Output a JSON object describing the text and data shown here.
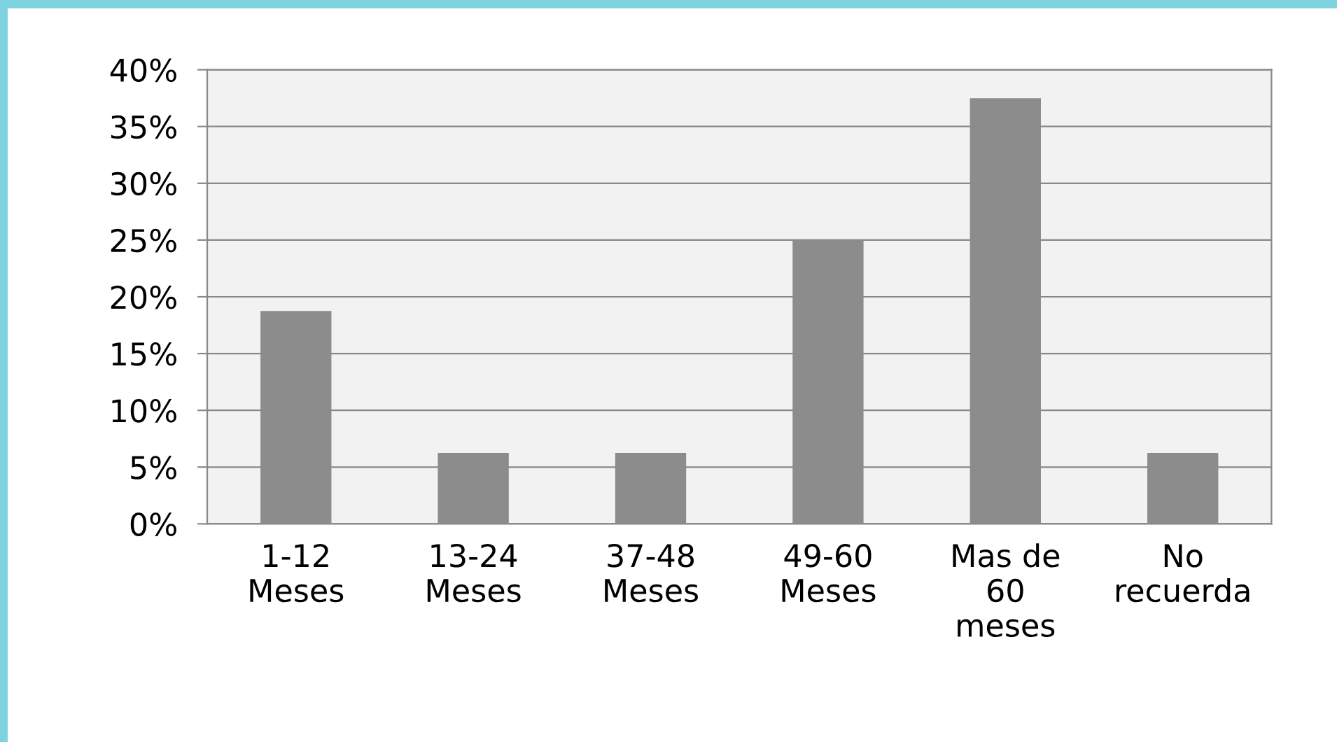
{
  "chart_data": {
    "type": "bar",
    "categories": [
      "1-12\nMeses",
      "13-24\nMeses",
      "37-48\nMeses",
      "49-60\nMeses",
      "Mas de\n60\nmeses",
      "No\nrecuerda"
    ],
    "values": [
      18.75,
      6.25,
      6.25,
      25,
      37.5,
      6.25
    ],
    "color": "#8c8c8c",
    "ylim": [
      0,
      40
    ],
    "yticks": [
      {
        "value": 0,
        "label": "0%"
      },
      {
        "value": 5,
        "label": "5%"
      },
      {
        "value": 10,
        "label": "10%"
      },
      {
        "value": 15,
        "label": "15%"
      },
      {
        "value": 20,
        "label": "20%"
      },
      {
        "value": 25,
        "label": "25%"
      },
      {
        "value": 30,
        "label": "30%"
      },
      {
        "value": 35,
        "label": "35%"
      },
      {
        "value": 40,
        "label": "40%"
      }
    ],
    "grid": "y",
    "legend": false
  }
}
